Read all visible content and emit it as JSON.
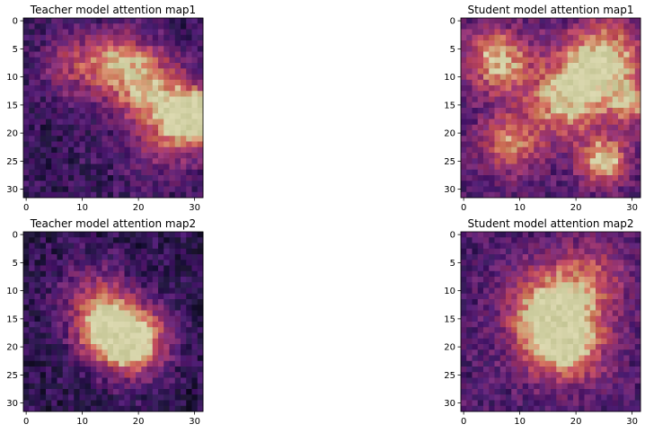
{
  "chart_data": {
    "type": "heatmap",
    "colormap": "magma-overlay",
    "grid": false,
    "panels": [
      {
        "title": "Teacher model attention map1",
        "xticks": [
          "0",
          "10",
          "20",
          "30"
        ],
        "yticks": [
          "0",
          "5",
          "10",
          "15",
          "20",
          "25",
          "30"
        ],
        "xlim": [
          -0.5,
          31.5
        ],
        "ylim": [
          31.5,
          -0.5
        ],
        "grid_size": [
          32,
          32
        ],
        "hotspots": [
          {
            "x": 30,
            "y": 17,
            "intensity": 1.0,
            "spread": 3.5
          },
          {
            "x": 22,
            "y": 12,
            "intensity": 0.7,
            "spread": 5
          },
          {
            "x": 16,
            "y": 7,
            "intensity": 0.55,
            "spread": 4
          },
          {
            "x": 8,
            "y": 8,
            "intensity": 0.4,
            "spread": 4
          },
          {
            "x": 25,
            "y": 22,
            "intensity": 0.35,
            "spread": 5
          }
        ],
        "base_level": 0.25
      },
      {
        "title": "Student model attention map1",
        "xticks": [
          "0",
          "10",
          "20",
          "30"
        ],
        "yticks": [
          "0",
          "5",
          "10",
          "15",
          "20",
          "25",
          "30"
        ],
        "xlim": [
          -0.5,
          31.5
        ],
        "ylim": [
          31.5,
          -0.5
        ],
        "grid_size": [
          32,
          32
        ],
        "hotspots": [
          {
            "x": 6,
            "y": 7,
            "intensity": 0.75,
            "spread": 4
          },
          {
            "x": 25,
            "y": 7,
            "intensity": 0.8,
            "spread": 5
          },
          {
            "x": 18,
            "y": 14,
            "intensity": 0.7,
            "spread": 5
          },
          {
            "x": 25,
            "y": 25,
            "intensity": 0.8,
            "spread": 3
          },
          {
            "x": 8,
            "y": 22,
            "intensity": 0.55,
            "spread": 4
          },
          {
            "x": 30,
            "y": 15,
            "intensity": 0.5,
            "spread": 3
          }
        ],
        "base_level": 0.35
      },
      {
        "title": "Teacher model attention map2",
        "xticks": [
          "0",
          "10",
          "20",
          "30"
        ],
        "yticks": [
          "0",
          "5",
          "10",
          "15",
          "20",
          "25",
          "30"
        ],
        "xlim": [
          -0.5,
          31.5
        ],
        "ylim": [
          31.5,
          -0.5
        ],
        "grid_size": [
          32,
          32
        ],
        "hotspots": [
          {
            "x": 19,
            "y": 19,
            "intensity": 1.0,
            "spread": 4.5
          },
          {
            "x": 14,
            "y": 17,
            "intensity": 0.6,
            "spread": 4
          },
          {
            "x": 12,
            "y": 11,
            "intensity": 0.4,
            "spread": 5
          }
        ],
        "base_level": 0.2
      },
      {
        "title": "Student model attention map2",
        "xticks": [
          "0",
          "10",
          "20",
          "30"
        ],
        "yticks": [
          "0",
          "5",
          "10",
          "15",
          "20",
          "25",
          "30"
        ],
        "xlim": [
          -0.5,
          31.5
        ],
        "ylim": [
          31.5,
          -0.5
        ],
        "grid_size": [
          32,
          32
        ],
        "hotspots": [
          {
            "x": 18,
            "y": 19,
            "intensity": 0.9,
            "spread": 5
          },
          {
            "x": 14,
            "y": 13,
            "intensity": 0.55,
            "spread": 5
          },
          {
            "x": 22,
            "y": 8,
            "intensity": 0.45,
            "spread": 5
          }
        ],
        "base_level": 0.35
      }
    ]
  }
}
